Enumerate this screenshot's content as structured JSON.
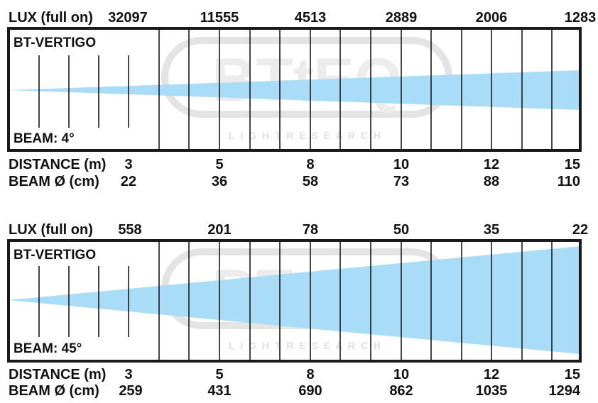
{
  "panels": [
    {
      "lux_label": "LUX (full on)",
      "lux_values": [
        "32097",
        "11555",
        "4513",
        "2889",
        "2006",
        "1283"
      ],
      "title": "BT-VERTIGO",
      "beam_label": "BEAM: 4°",
      "distance_label": "DISTANCE (m)",
      "diameter_label": "BEAM Ø (cm)",
      "distances": [
        "3",
        "5",
        "8",
        "10",
        "12",
        "15"
      ],
      "diameters": [
        "22",
        "36",
        "58",
        "73",
        "88",
        "110"
      ],
      "beam_angle_deg": 4
    },
    {
      "lux_label": "LUX (full on)",
      "lux_values": [
        "558",
        "201",
        "78",
        "50",
        "35",
        "22"
      ],
      "title": "BT-VERTIGO",
      "beam_label": "BEAM: 45°",
      "distance_label": "DISTANCE (m)",
      "diameter_label": "BEAM Ø (cm)",
      "distances": [
        "3",
        "5",
        "8",
        "10",
        "12",
        "15"
      ],
      "diameters": [
        "259",
        "431",
        "690",
        "862",
        "1035",
        "1294"
      ],
      "beam_angle_deg": 45
    }
  ],
  "watermark": {
    "logo_text": "BTtEQ",
    "tagline": "L I G H T   R E S E A R C H"
  },
  "colors": {
    "beam_fill": "#a9dcf6",
    "frame": "#1a1a1a",
    "watermark": "#e6e6e6"
  }
}
